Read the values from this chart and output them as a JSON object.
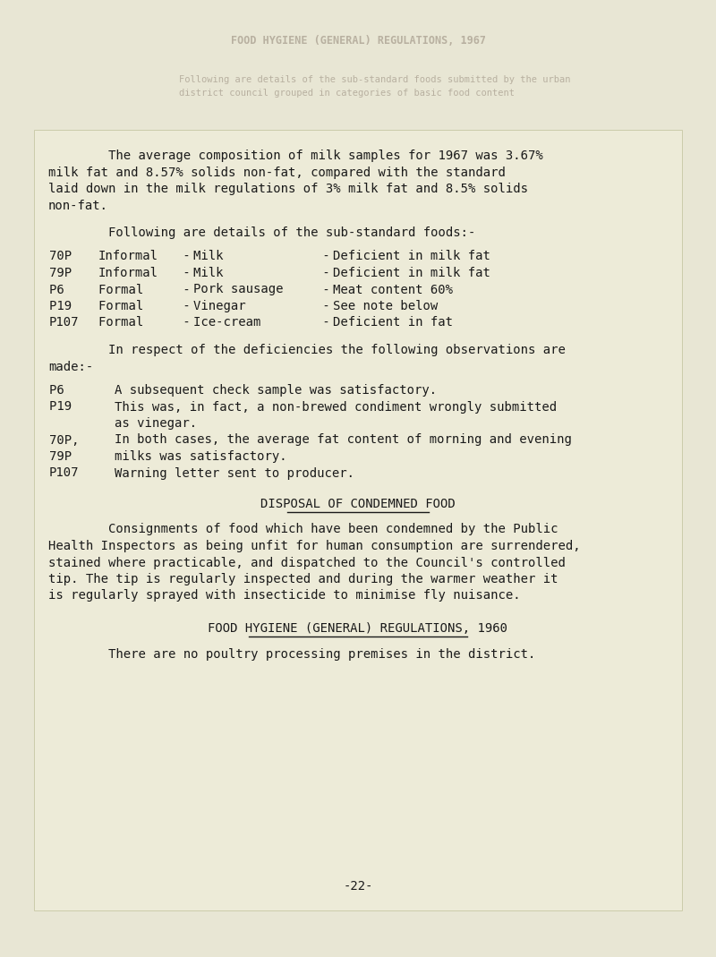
{
  "page_bg": "#e8e6d4",
  "box_bg": "#edebd8",
  "box_edge": "#ccccaa",
  "text_color": "#1a1a1a",
  "faded_color": "#b8b0a0",
  "faded_line1": "FOOD HYGIENE (GENERAL) REGULATIONS, 1967",
  "faded_line2": "Following are details of the sub-standard foods submitted by the urban",
  "faded_line3": "district council grouped in categories of basic food content",
  "para1_lines": [
    "        The average composition of milk samples for 1967 was 3.67%",
    "milk fat and 8.57% solids non-fat, compared with the standard",
    "laid down in the milk regulations of 3% milk fat and 8.5% solids",
    "non-fat."
  ],
  "substandard_header": "        Following are details of the sub-standard foods:-",
  "table_rows": [
    [
      "70P ",
      "Informal",
      " - ",
      "Milk        ",
      " - ",
      "Deficient in milk fat"
    ],
    [
      "79P ",
      "Informal",
      " - ",
      "Milk        ",
      " - ",
      "Deficient in milk fat"
    ],
    [
      "P6  ",
      "Formal  ",
      " - ",
      "Pork sausage",
      " - ",
      "Meat content 60%"
    ],
    [
      "P19 ",
      "Formal  ",
      " - ",
      "Vinegar     ",
      " - ",
      "See note below"
    ],
    [
      "P107",
      "Formal  ",
      " - ",
      "Ice-cream   ",
      " - ",
      "Deficient in fat"
    ]
  ],
  "obs_intro_line1": "        In respect of the deficiencies the following observations are",
  "obs_intro_line2": "made:-",
  "obs_rows": [
    [
      "P6  ",
      "A subsequent check sample was satisfactory."
    ],
    [
      "P19 ",
      "This was, in fact, a non-brewed condiment wrongly submitted"
    ],
    [
      "    ",
      "as vinegar."
    ],
    [
      "70P,",
      "In both cases, the average fat content of morning and evening"
    ],
    [
      "79P ",
      "milks was satisfactory."
    ],
    [
      "P107",
      "Warning letter sent to producer."
    ]
  ],
  "section1_title": "DISPOSAL OF CONDEMNED FOOD",
  "section1_body": [
    "        Consignments of food which have been condemned by the Public",
    "Health Inspectors as being unfit for human consumption are surrendered,",
    "stained where practicable, and dispatched to the Council's controlled",
    "tip. The tip is regularly inspected and during the warmer weather it",
    "is regularly sprayed with insecticide to minimise fly nuisance."
  ],
  "section2_title": "FOOD HYGIENE (GENERAL) REGULATIONS, 1960",
  "section2_body": "        There are no poultry processing premises in the district.",
  "page_number": "-22-"
}
